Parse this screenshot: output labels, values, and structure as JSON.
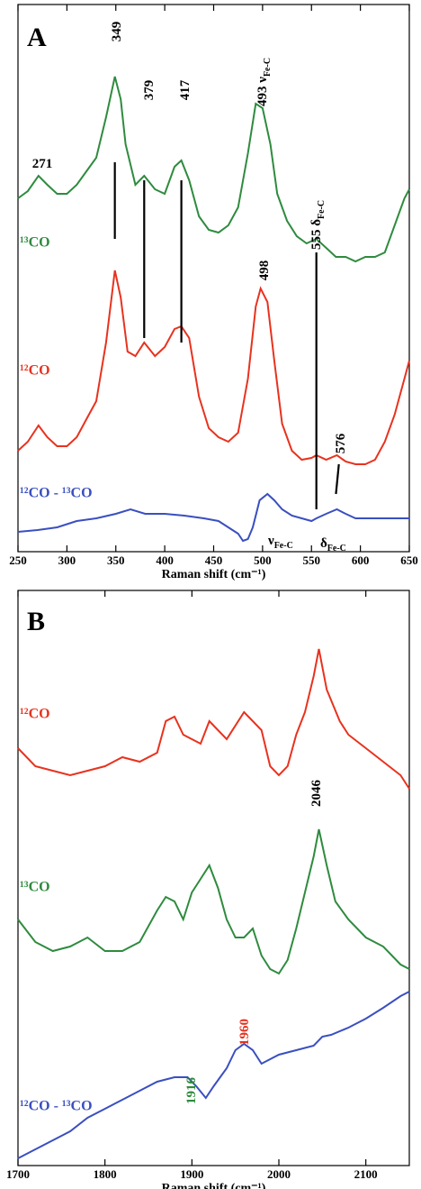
{
  "chart_data": [
    {
      "type": "line",
      "panel_label": "A",
      "x_label": "Raman shift (cm⁻¹)",
      "xlim": [
        250,
        650
      ],
      "xticks": [
        250,
        300,
        350,
        400,
        450,
        500,
        550,
        600,
        650
      ],
      "ylim": [
        0,
        607
      ],
      "series": [
        {
          "name": "¹³CO",
          "color": "#2e8b3e",
          "x": [
            250,
            260,
            271,
            280,
            290,
            300,
            310,
            320,
            330,
            340,
            349,
            355,
            360,
            370,
            379,
            390,
            400,
            410,
            417,
            425,
            435,
            445,
            455,
            465,
            475,
            485,
            493,
            500,
            508,
            515,
            525,
            535,
            545,
            555,
            565,
            575,
            585,
            595,
            605,
            615,
            625,
            635,
            645,
            650
          ],
          "values": [
            392,
            400,
            417,
            407,
            397,
            397,
            407,
            422,
            437,
            482,
            527,
            502,
            452,
            407,
            417,
            402,
            397,
            427,
            434,
            412,
            372,
            357,
            354,
            362,
            382,
            442,
            497,
            492,
            452,
            397,
            367,
            350,
            342,
            347,
            337,
            327,
            327,
            322,
            327,
            327,
            332,
            362,
            392,
            402
          ]
        },
        {
          "name": "¹²CO",
          "color": "#e8321e",
          "x": [
            250,
            260,
            271,
            280,
            290,
            300,
            310,
            320,
            330,
            340,
            349,
            355,
            362,
            370,
            379,
            390,
            400,
            410,
            417,
            425,
            435,
            445,
            455,
            465,
            475,
            485,
            493,
            498,
            505,
            512,
            520,
            530,
            540,
            550,
            555,
            565,
            576,
            585,
            595,
            605,
            615,
            625,
            635,
            645,
            650
          ],
          "values": [
            112,
            122,
            140,
            127,
            117,
            117,
            127,
            147,
            167,
            232,
            312,
            282,
            222,
            217,
            232,
            217,
            227,
            247,
            250,
            237,
            172,
            137,
            127,
            122,
            132,
            192,
            272,
            292,
            277,
            212,
            142,
            112,
            102,
            104,
            107,
            102,
            107,
            100,
            97,
            97,
            102,
            122,
            152,
            192,
            212
          ]
        },
        {
          "name": "¹²CO - ¹³CO",
          "color": "#3a4fc0",
          "x": [
            250,
            270,
            290,
            310,
            330,
            350,
            365,
            380,
            400,
            420,
            440,
            455,
            465,
            475,
            480,
            485,
            490,
            497,
            505,
            512,
            520,
            530,
            540,
            550,
            555,
            565,
            576,
            585,
            595,
            610,
            630,
            650
          ],
          "values": [
            22,
            24,
            27,
            34,
            37,
            42,
            47,
            42,
            42,
            40,
            37,
            34,
            27,
            20,
            12,
            14,
            27,
            57,
            64,
            57,
            47,
            40,
            37,
            34,
            37,
            42,
            47,
            42,
            37,
            37,
            37,
            37
          ]
        }
      ],
      "peak_lines": [
        {
          "x": [
            349,
            349
          ],
          "y": [
            432,
            347
          ]
        },
        {
          "x": [
            379,
            379
          ],
          "y": [
            412,
            237
          ]
        },
        {
          "x": [
            417,
            417
          ],
          "y": [
            412,
            232
          ]
        },
        {
          "x": [
            555,
            555
          ],
          "y": [
            332,
            47
          ]
        },
        {
          "x": [
            578,
            575
          ],
          "y": [
            97,
            64
          ]
        }
      ],
      "annotations": [
        {
          "text": "271",
          "color": "#000000"
        },
        {
          "text": "349",
          "color": "#000000"
        },
        {
          "text": "379",
          "color": "#000000"
        },
        {
          "text": "417",
          "color": "#000000"
        },
        {
          "text": "493 ν",
          "sub": "Fe-C",
          "color": "#000000"
        },
        {
          "text": "555 δ",
          "sub": "Fe-C",
          "color": "#000000"
        },
        {
          "text": "498",
          "color": "#000000"
        },
        {
          "text": "576",
          "color": "#000000"
        },
        {
          "text": "ν",
          "sub": "Fe-C",
          "color": "#000000"
        },
        {
          "text": "δ",
          "sub": "Fe-C",
          "color": "#000000"
        }
      ]
    },
    {
      "type": "line",
      "panel_label": "B",
      "x_label": "Raman shift (cm⁻¹)",
      "xlim": [
        1700,
        2150
      ],
      "xticks": [
        1700,
        1800,
        1900,
        2000,
        2100
      ],
      "ylim": [
        0,
        638
      ],
      "series": [
        {
          "name": "¹²CO",
          "color": "#e8321e",
          "x": [
            1700,
            1720,
            1740,
            1760,
            1780,
            1800,
            1820,
            1840,
            1860,
            1870,
            1880,
            1890,
            1900,
            1910,
            1920,
            1940,
            1960,
            1970,
            1980,
            1990,
            2000,
            2010,
            2020,
            2030,
            2040,
            2046,
            2055,
            2070,
            2080,
            2100,
            2120,
            2140,
            2150
          ],
          "values": [
            463,
            443,
            438,
            433,
            438,
            443,
            453,
            448,
            458,
            493,
            498,
            478,
            473,
            468,
            493,
            473,
            503,
            493,
            483,
            443,
            433,
            443,
            478,
            503,
            543,
            573,
            528,
            493,
            478,
            463,
            448,
            433,
            418
          ]
        },
        {
          "name": "¹³CO",
          "color": "#2e8b3e",
          "x": [
            1700,
            1720,
            1740,
            1760,
            1780,
            1800,
            1820,
            1840,
            1860,
            1870,
            1880,
            1890,
            1900,
            1910,
            1920,
            1930,
            1940,
            1950,
            1960,
            1970,
            1980,
            1990,
            2000,
            2010,
            2020,
            2030,
            2040,
            2046,
            2055,
            2065,
            2080,
            2100,
            2120,
            2140,
            2150
          ],
          "values": [
            273,
            248,
            238,
            243,
            253,
            238,
            238,
            248,
            283,
            298,
            293,
            273,
            303,
            318,
            333,
            308,
            273,
            253,
            253,
            263,
            233,
            218,
            213,
            228,
            263,
            303,
            343,
            373,
            333,
            293,
            273,
            253,
            243,
            223,
            218
          ]
        },
        {
          "name": "¹²CO - ¹³CO",
          "color": "#3a4fc0",
          "x": [
            1700,
            1720,
            1740,
            1760,
            1780,
            1800,
            1820,
            1840,
            1860,
            1880,
            1895,
            1905,
            1916,
            1925,
            1940,
            1950,
            1960,
            1970,
            1980,
            2000,
            2020,
            2040,
            2050,
            2060,
            2080,
            2100,
            2120,
            2140,
            2150
          ],
          "values": [
            8,
            18,
            28,
            38,
            53,
            63,
            73,
            83,
            93,
            98,
            98,
            88,
            75,
            88,
            108,
            128,
            135,
            128,
            113,
            123,
            128,
            133,
            143,
            145,
            153,
            163,
            175,
            188,
            193
          ]
        }
      ],
      "annotations": [
        {
          "text": "2046",
          "color": "#000000"
        },
        {
          "text": "1916",
          "color": "#2e8b3e"
        },
        {
          "text": "1960",
          "color": "#e8321e"
        }
      ]
    }
  ]
}
